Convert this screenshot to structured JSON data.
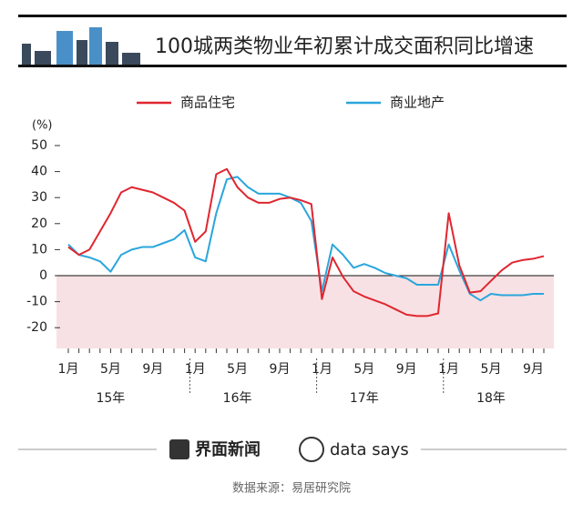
{
  "chart_data": {
    "type": "line",
    "title": "100城两类物业年初累计成交面积同比增速",
    "y_label": "(%)",
    "categories": [
      "1月",
      null,
      null,
      null,
      "5月",
      null,
      null,
      null,
      "9月",
      null,
      null,
      null,
      "1月",
      null,
      null,
      null,
      "5月",
      null,
      null,
      null,
      "9月",
      null,
      null,
      null,
      "1月",
      null,
      null,
      null,
      "5月",
      null,
      null,
      null,
      "9月",
      null,
      null,
      null,
      "1月",
      null,
      null,
      null,
      "5月",
      null,
      null,
      null,
      "9月",
      null
    ],
    "groups": [
      "15年",
      "16年",
      "17年",
      "18年"
    ],
    "series": [
      {
        "name": "商品住宅",
        "color": "#e0262f",
        "values": [
          11,
          8,
          10,
          17,
          24,
          32,
          34,
          33,
          32,
          30,
          28,
          25,
          13,
          17,
          39,
          41,
          34,
          30,
          28,
          28,
          29.5,
          30,
          29,
          27.5,
          -9,
          7,
          -0.5,
          -6,
          -8,
          -9.5,
          -11,
          -13,
          -15,
          -15.5,
          -15.5,
          -14.5,
          24,
          4,
          -6.5,
          -6,
          -2,
          2,
          5,
          6,
          6.5,
          7.5
        ]
      },
      {
        "name": "商业地产",
        "color": "#2aa6dc",
        "values": [
          12,
          8,
          7,
          5.5,
          1.5,
          8,
          10,
          11,
          11,
          12.5,
          14,
          17.5,
          7,
          5.5,
          24,
          37,
          38,
          34,
          31.5,
          31.5,
          31.5,
          30,
          28,
          21,
          -6,
          12,
          8,
          3,
          4.5,
          3,
          1,
          0,
          -1,
          -3.5,
          -3.5,
          -3.5,
          12,
          2,
          -7,
          -9.5,
          -7,
          -7.5,
          -7.5,
          -7.5,
          -7,
          -7
        ]
      }
    ],
    "ylim": [
      -28,
      50
    ],
    "yticks": [
      -20,
      -10,
      0,
      10,
      20,
      30,
      40,
      50
    ],
    "negative_fill": "#f8e1e4"
  },
  "footer": {
    "brand": "界面新闻",
    "brand2": "data says",
    "source": "数据来源：易居研究院"
  }
}
